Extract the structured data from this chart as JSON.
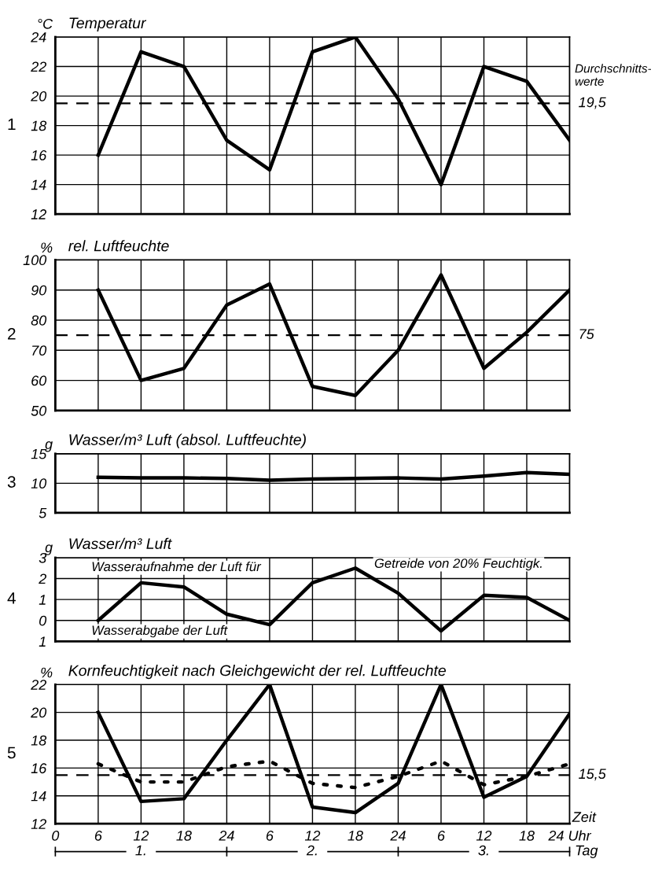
{
  "chart_data": [
    {
      "type": "line",
      "title": "Temperatur",
      "ylabel": "°C",
      "categories": [
        null,
        null,
        null,
        null,
        null,
        null,
        null,
        null,
        null,
        null,
        null,
        null,
        null
      ],
      "series": [
        {
          "color": "#000000",
          "values": [
            null,
            16,
            23,
            22,
            17,
            15,
            23,
            24,
            19.8,
            14,
            22,
            21,
            17
          ]
        }
      ],
      "ylim": [
        12,
        24
      ],
      "yticks": [
        12,
        14,
        16,
        18,
        20,
        22,
        24
      ],
      "tick_labels": "y",
      "grid": true,
      "marker": "none",
      "line_style": "solid",
      "ref_lines": [
        {
          "axis": "y",
          "value": 19.5,
          "label": "19,5",
          "color": "#000000",
          "line_style": "dashed"
        }
      ],
      "annotations": [
        "1",
        "Durchschnitts-\nwerte"
      ]
    },
    {
      "type": "line",
      "title": "rel. Luftfeuchte",
      "ylabel": "%",
      "categories": [
        null,
        null,
        null,
        null,
        null,
        null,
        null,
        null,
        null,
        null,
        null,
        null,
        null
      ],
      "series": [
        {
          "color": "#000000",
          "values": [
            null,
            90,
            60,
            64,
            85,
            92,
            58,
            55,
            70,
            95,
            64,
            76,
            90
          ]
        }
      ],
      "ylim": [
        50,
        100
      ],
      "yticks": [
        50,
        60,
        70,
        80,
        90,
        100
      ],
      "tick_labels": "y",
      "grid": true,
      "marker": "none",
      "line_style": "solid",
      "ref_lines": [
        {
          "axis": "y",
          "value": 75,
          "label": "75",
          "color": "#000000",
          "line_style": "dashed"
        }
      ],
      "annotations": [
        "2"
      ]
    },
    {
      "type": "line",
      "title": "Wasser/m³ Luft (absol. Luftfeuchte)",
      "ylabel": "g",
      "categories": [
        null,
        null,
        null,
        null,
        null,
        null,
        null,
        null,
        null,
        null,
        null,
        null,
        null
      ],
      "series": [
        {
          "color": "#000000",
          "values": [
            null,
            11,
            10.9,
            10.9,
            10.8,
            10.5,
            10.7,
            10.8,
            10.9,
            10.7,
            11.2,
            11.8,
            11.5
          ]
        }
      ],
      "ylim": [
        5,
        15
      ],
      "yticks": [
        5,
        10,
        15
      ],
      "tick_labels": "y",
      "grid": true,
      "marker": "none",
      "line_style": "solid",
      "annotations": [
        "3"
      ]
    },
    {
      "type": "line",
      "title": "Wasser/m³ Luft",
      "ylabel": "g",
      "categories": [
        null,
        null,
        null,
        null,
        null,
        null,
        null,
        null,
        null,
        null,
        null,
        null,
        null
      ],
      "series": [
        {
          "color": "#000000",
          "values": [
            null,
            0,
            1.8,
            1.6,
            0.3,
            -0.2,
            1.8,
            2.5,
            1.3,
            -0.5,
            1.2,
            1.1,
            0
          ]
        }
      ],
      "ylim": [
        -1,
        3
      ],
      "yticks": [
        {
          "value": -1,
          "label": "1"
        },
        0,
        1,
        2,
        3
      ],
      "tick_labels": "y",
      "grid": true,
      "marker": "none",
      "line_style": "solid",
      "annotations": [
        "4",
        "Wasseraufnahme der Luft für",
        "Getreide von 20% Feuchtigk.",
        "Wasserabgabe der Luft"
      ]
    },
    {
      "type": "line",
      "title": "Kornfeuchtigkeit nach Gleichgewicht der rel. Luftfeuchte",
      "ylabel": "%",
      "xlabel": "Zeit",
      "categories": [
        "0",
        "6",
        "12",
        "18",
        "24",
        "6",
        "12",
        "18",
        "24",
        "6",
        "12",
        "18",
        "24 Uhr"
      ],
      "series": [
        {
          "color": "#000000",
          "values": [
            null,
            20,
            13.6,
            13.8,
            18,
            22,
            13.2,
            12.8,
            14.9,
            22,
            13.9,
            15.4,
            19.9
          ]
        },
        {
          "color": "#000000",
          "line_style": "dotted",
          "values": [
            null,
            16.3,
            15.0,
            15.0,
            16.1,
            16.5,
            14.9,
            14.6,
            15.4,
            16.5,
            14.8,
            15.4,
            16.3
          ]
        }
      ],
      "ylim": [
        12,
        22
      ],
      "yticks": [
        12,
        14,
        16,
        18,
        20,
        22
      ],
      "grid": true,
      "marker": "none",
      "line_style": "solid",
      "ref_lines": [
        {
          "axis": "y",
          "value": 15.5,
          "label": "15,5",
          "color": "#000000",
          "line_style": "dashed"
        }
      ],
      "annotations": [
        "5",
        "1.",
        "2.",
        "3.",
        "Tag"
      ]
    }
  ]
}
